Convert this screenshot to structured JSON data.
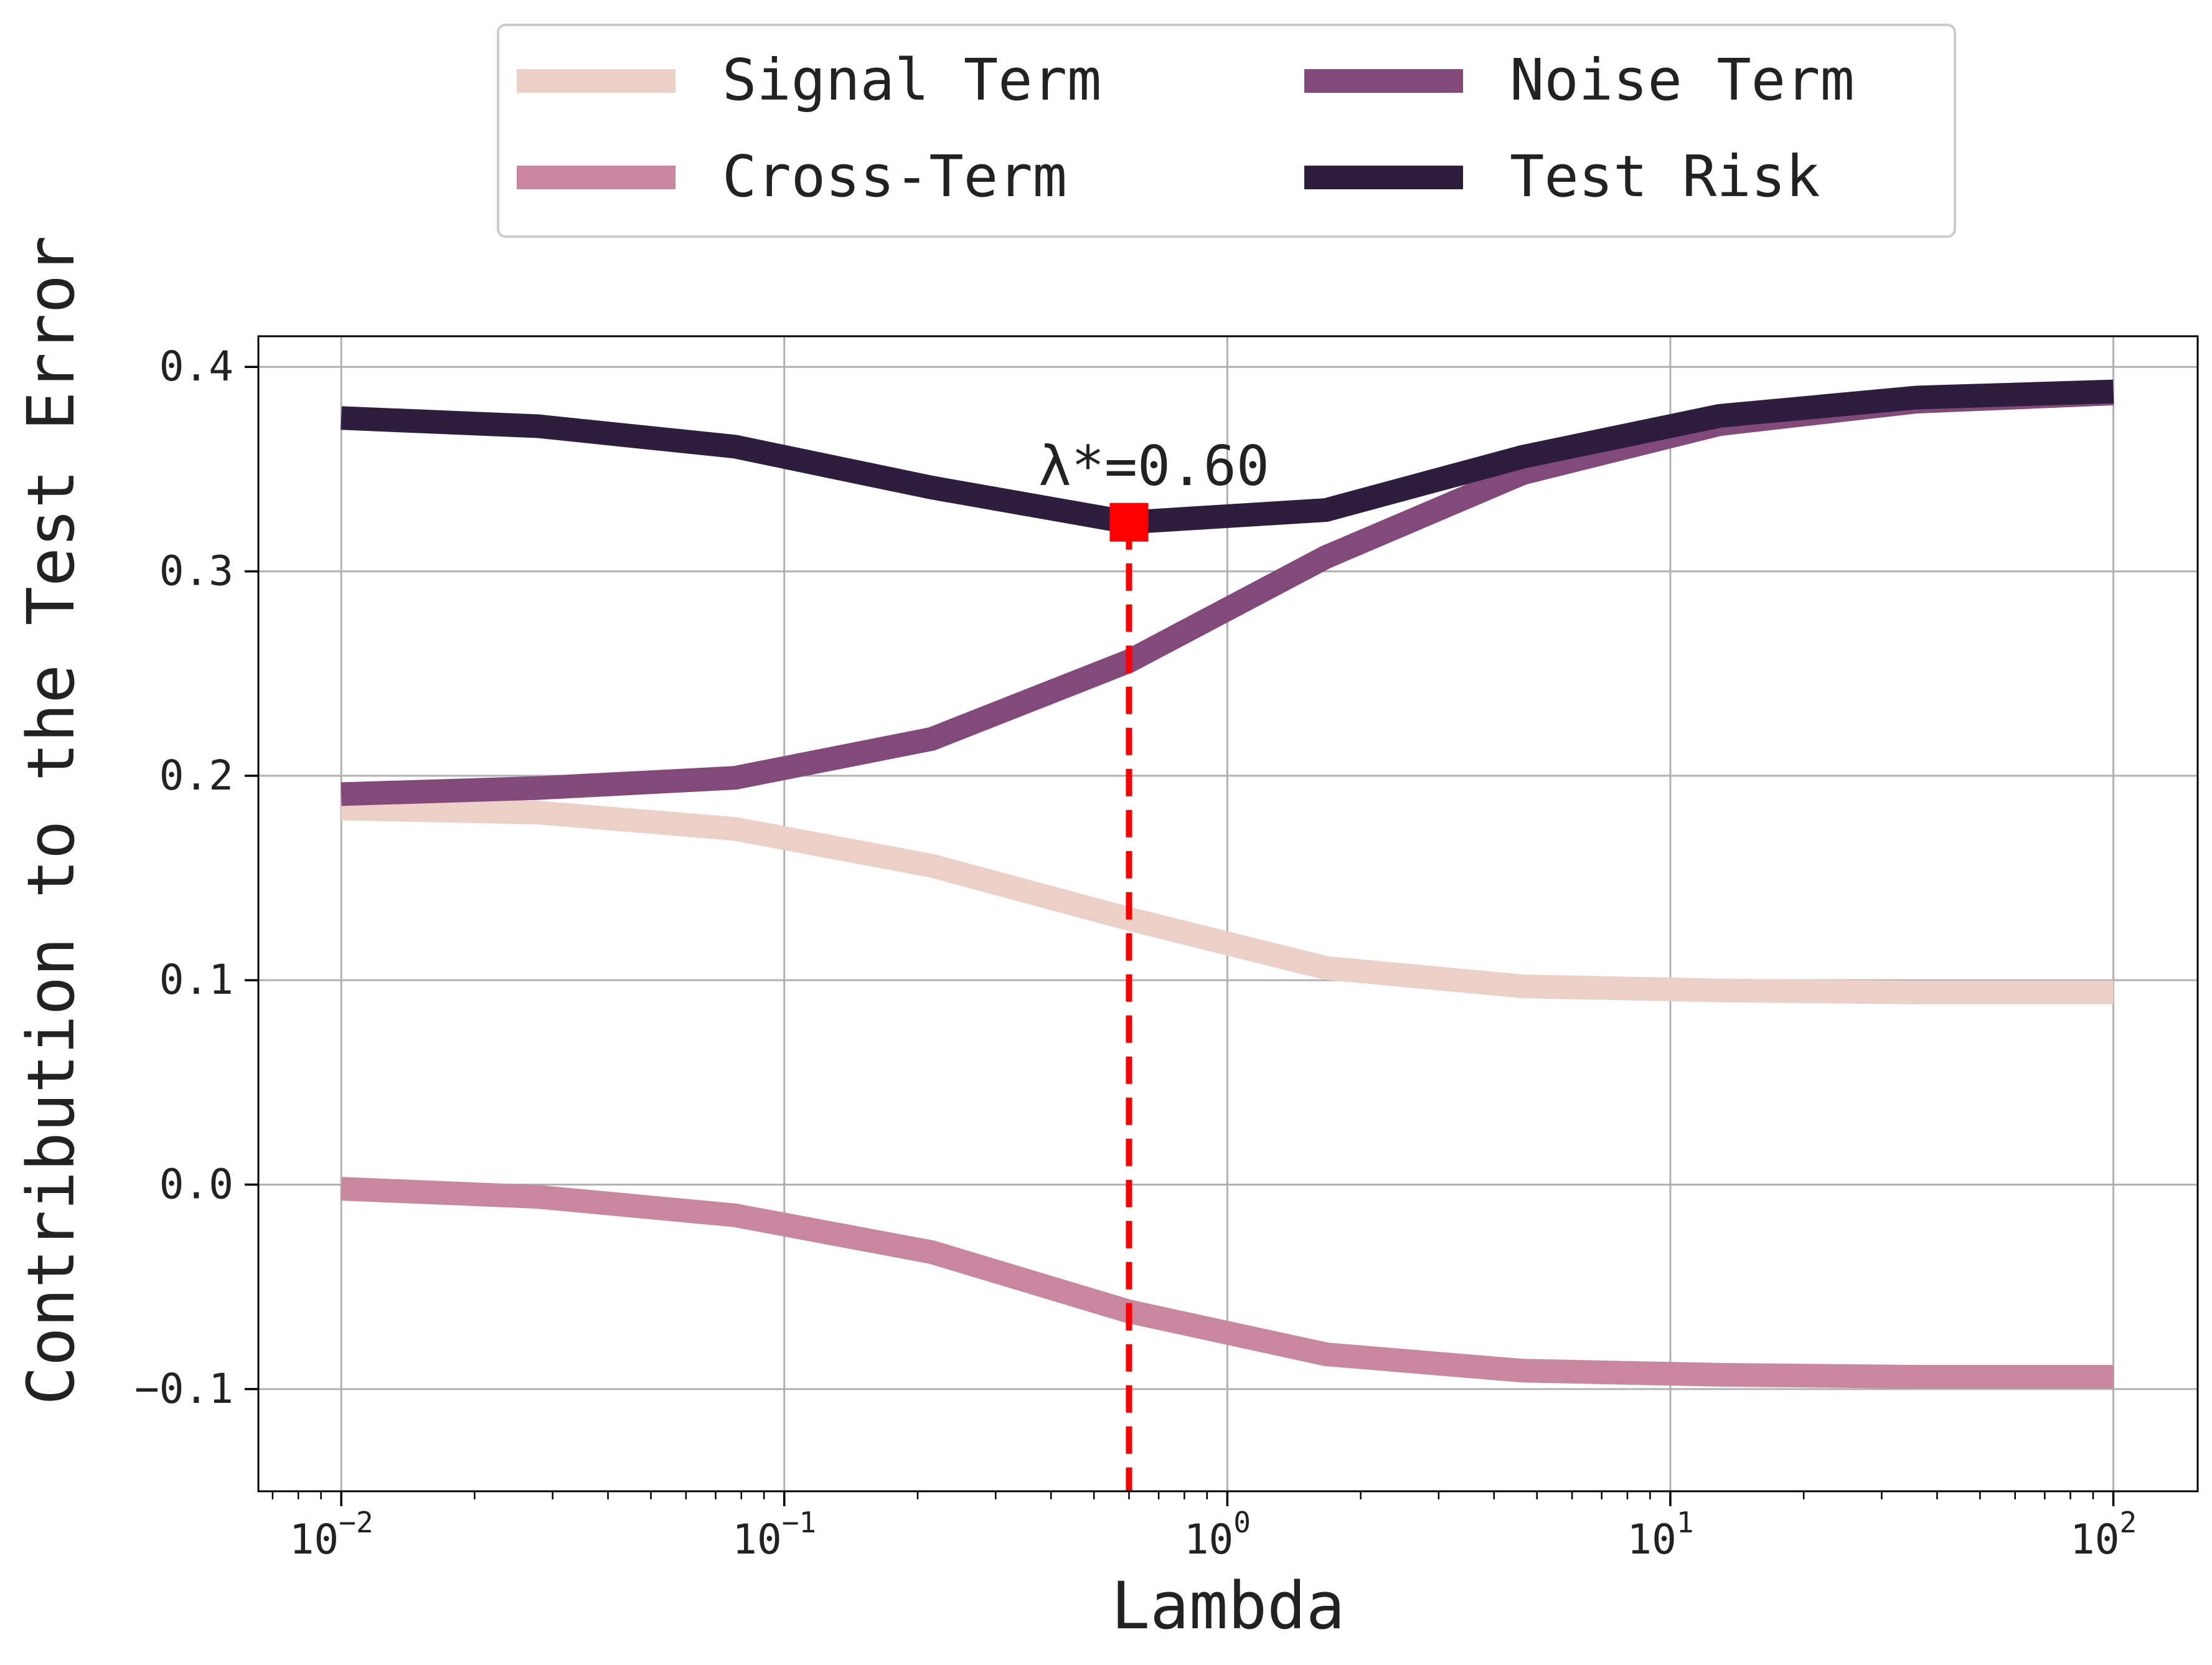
{
  "chart_data": {
    "type": "line",
    "xlabel": "Lambda",
    "ylabel": "Contribution to the Test Error",
    "xscale": "log",
    "xlim": [
      0.0065,
      155
    ],
    "ylim": [
      -0.15,
      0.415
    ],
    "grid": true,
    "legend": {
      "placement": "top, outside plot",
      "columns": 2
    },
    "x_ticks": [
      {
        "value": 0.01,
        "base": "10",
        "exp": "−2"
      },
      {
        "value": 0.1,
        "base": "10",
        "exp": "−1"
      },
      {
        "value": 1,
        "base": "10",
        "exp": "0"
      },
      {
        "value": 10,
        "base": "10",
        "exp": "1"
      },
      {
        "value": 100,
        "base": "10",
        "exp": "2"
      }
    ],
    "y_ticks": [
      {
        "value": 0.4,
        "label": "0.4"
      },
      {
        "value": 0.3,
        "label": "0.3"
      },
      {
        "value": 0.2,
        "label": "0.2"
      },
      {
        "value": 0.1,
        "label": "0.1"
      },
      {
        "value": 0.0,
        "label": "0.0"
      },
      {
        "value": -0.1,
        "label": "−0.1"
      }
    ],
    "x": [
      0.01,
      0.0278,
      0.0774,
      0.215,
      0.599,
      1.67,
      4.64,
      12.9,
      35.9,
      100
    ],
    "series": [
      {
        "name": "Signal Term",
        "color": "#ecd0c8",
        "values": [
          0.184,
          0.182,
          0.174,
          0.156,
          0.13,
          0.106,
          0.097,
          0.095,
          0.094,
          0.094
        ]
      },
      {
        "name": "Cross-Term",
        "color": "#c8879e",
        "values": [
          -0.002,
          -0.006,
          -0.015,
          -0.033,
          -0.062,
          -0.083,
          -0.091,
          -0.093,
          -0.094,
          -0.094
        ]
      },
      {
        "name": "Noise Term",
        "color": "#82497a",
        "values": [
          0.191,
          0.194,
          0.199,
          0.218,
          0.256,
          0.307,
          0.348,
          0.372,
          0.383,
          0.387
        ]
      },
      {
        "name": "Test Risk",
        "color": "#2d1d3e",
        "values": [
          0.375,
          0.371,
          0.361,
          0.341,
          0.324,
          0.33,
          0.356,
          0.376,
          0.385,
          0.388
        ]
      }
    ],
    "optimum": {
      "x": 0.6,
      "y": 0.324,
      "label": "λ*=0.60",
      "color": "#ff0000"
    }
  }
}
